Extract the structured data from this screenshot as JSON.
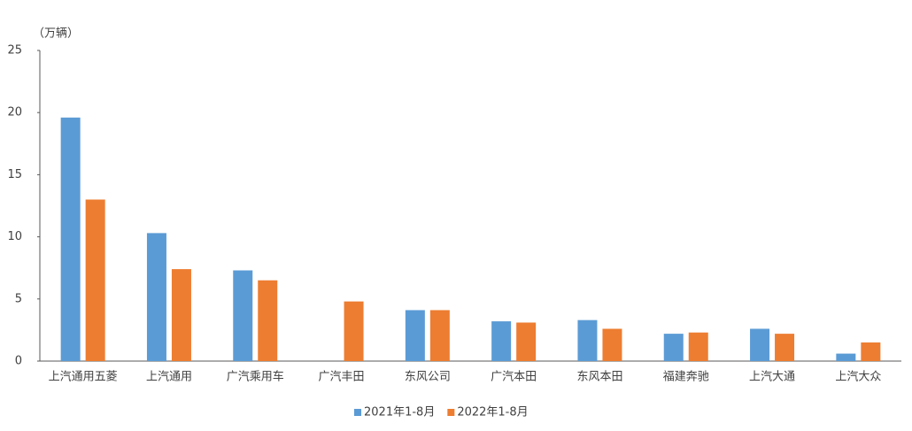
{
  "chart_data": {
    "type": "bar",
    "y_label": "（万辆）",
    "categories": [
      "上汽通用五菱",
      "上汽通用",
      "广汽乘用车",
      "广汽丰田",
      "东风公司",
      "广汽本田",
      "东风本田",
      "福建奔驰",
      "上汽大通",
      "上汽大众"
    ],
    "series": [
      {
        "name": "2021年1-8月",
        "color": "#5b9bd5",
        "values": [
          19.6,
          10.3,
          7.3,
          null,
          4.1,
          3.2,
          3.3,
          2.2,
          2.6,
          0.6
        ]
      },
      {
        "name": "2022年1-8月",
        "color": "#ed7d31",
        "values": [
          13.0,
          7.4,
          6.5,
          4.8,
          4.1,
          3.1,
          2.6,
          2.3,
          2.2,
          1.5
        ]
      }
    ],
    "ylim": [
      0,
      25
    ],
    "yticks": [
      0,
      5,
      10,
      15,
      20,
      25
    ],
    "grid": false,
    "legend": "bottom"
  }
}
